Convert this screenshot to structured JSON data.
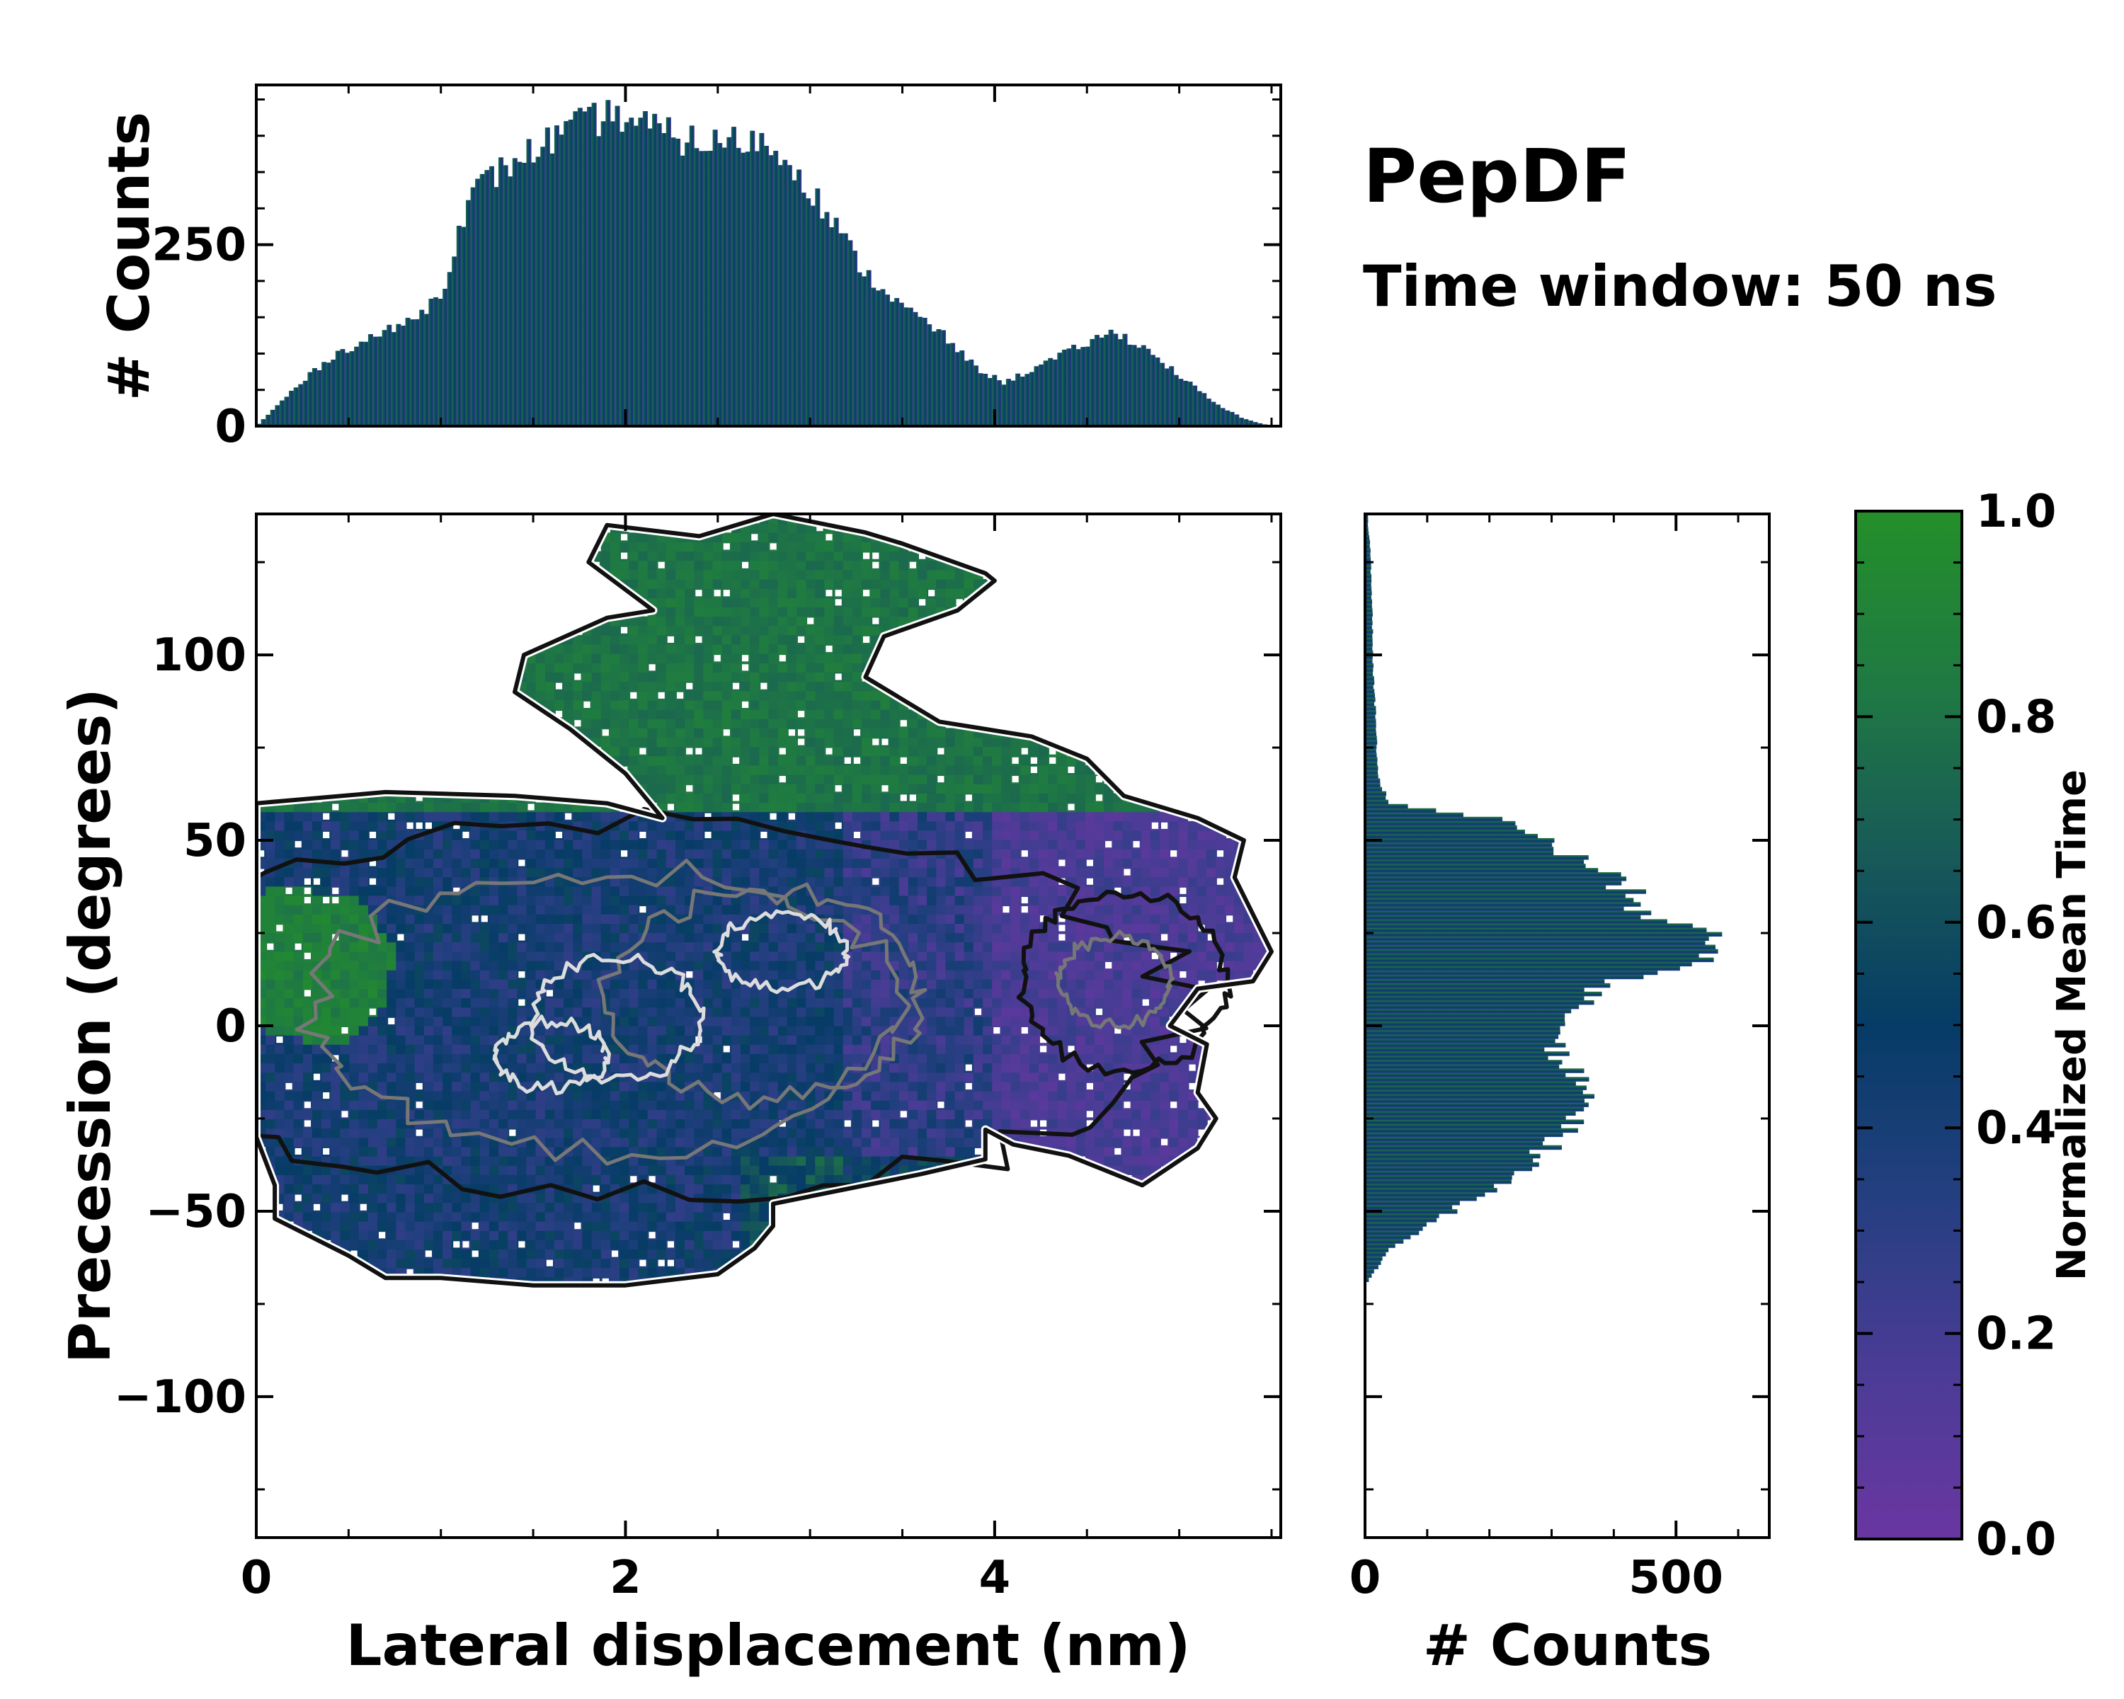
{
  "title": "PepDF",
  "subtitle": "Time window: 50 ns",
  "colors": {
    "cmap": [
      "#6a36a1",
      "#4a3c96",
      "#243f80",
      "#063c66",
      "#185a58",
      "#1f7a42",
      "#248f2a"
    ],
    "contour_outer": "#111111",
    "contour_inner": "#777777",
    "contour_core": "#dddddd",
    "missing": "#ffffff"
  },
  "chart_data": [
    {
      "type": "heatmap",
      "name": "main-2d-histogram",
      "xlabel": "Lateral displacement (nm)",
      "ylabel": "Precession (degrees)",
      "xlim": [
        0,
        5.55
      ],
      "ylim": [
        -138,
        138
      ],
      "xticks": [
        0,
        2,
        4
      ],
      "xtick_labels": [
        "0",
        "2",
        "4"
      ],
      "yticks": [
        -100,
        -50,
        0,
        50,
        100
      ],
      "ytick_labels": [
        "−100",
        "−50",
        "0",
        "50",
        "100"
      ],
      "outline_polygon": [
        [
          0.0,
          60
        ],
        [
          0.7,
          63
        ],
        [
          1.4,
          62
        ],
        [
          1.9,
          60
        ],
        [
          2.2,
          56
        ],
        [
          2.0,
          68
        ],
        [
          1.7,
          80
        ],
        [
          1.4,
          90
        ],
        [
          1.45,
          100
        ],
        [
          1.9,
          110
        ],
        [
          2.15,
          112
        ],
        [
          1.8,
          125
        ],
        [
          1.9,
          135
        ],
        [
          2.4,
          132
        ],
        [
          2.8,
          138
        ],
        [
          3.3,
          133
        ],
        [
          3.5,
          130
        ],
        [
          3.95,
          122
        ],
        [
          4.0,
          120
        ],
        [
          3.8,
          112
        ],
        [
          3.4,
          105
        ],
        [
          3.3,
          94
        ],
        [
          3.7,
          82
        ],
        [
          4.2,
          78
        ],
        [
          4.5,
          72
        ],
        [
          4.7,
          62
        ],
        [
          5.1,
          56
        ],
        [
          5.35,
          50
        ],
        [
          5.3,
          40
        ],
        [
          5.4,
          30
        ],
        [
          5.5,
          20
        ],
        [
          5.4,
          12
        ],
        [
          5.1,
          10
        ],
        [
          4.95,
          0
        ],
        [
          5.15,
          -5
        ],
        [
          5.1,
          -18
        ],
        [
          5.2,
          -25
        ],
        [
          5.1,
          -33
        ],
        [
          4.95,
          -38
        ],
        [
          4.8,
          -43
        ],
        [
          4.4,
          -35
        ],
        [
          4.1,
          -32
        ],
        [
          3.95,
          -28
        ],
        [
          3.95,
          -36
        ],
        [
          3.6,
          -40
        ],
        [
          3.2,
          -44
        ],
        [
          2.8,
          -48
        ],
        [
          2.8,
          -54
        ],
        [
          2.7,
          -60
        ],
        [
          2.5,
          -67
        ],
        [
          2.0,
          -70
        ],
        [
          1.5,
          -70
        ],
        [
          1.0,
          -68
        ],
        [
          0.7,
          -68
        ],
        [
          0.5,
          -62
        ],
        [
          0.3,
          -57
        ],
        [
          0.1,
          -52
        ],
        [
          0.1,
          -43
        ],
        [
          0.0,
          -30
        ]
      ],
      "green_polygon": [
        [
          0.0,
          0
        ],
        [
          0.0,
          35
        ],
        [
          0.15,
          38
        ],
        [
          0.55,
          34
        ],
        [
          0.75,
          22
        ],
        [
          0.7,
          5
        ],
        [
          0.45,
          -5
        ],
        [
          0.15,
          -3
        ]
      ],
      "contours": [
        {
          "level": "outer",
          "cx": 2.1,
          "cy": 4,
          "rx": 2.9,
          "ry": 50,
          "jitter": 5
        },
        {
          "level": "outer",
          "cx": 4.7,
          "cy": 12,
          "rx": 0.55,
          "ry": 24,
          "jitter": 4
        },
        {
          "level": "mid",
          "cx": 1.9,
          "cy": 4,
          "rx": 1.6,
          "ry": 38,
          "jitter": 5
        },
        {
          "level": "mid",
          "cx": 2.75,
          "cy": 8,
          "rx": 0.85,
          "ry": 28,
          "jitter": 4
        },
        {
          "level": "mid",
          "cx": 4.65,
          "cy": 12,
          "rx": 0.3,
          "ry": 12,
          "jitter": 3
        },
        {
          "level": "core",
          "cx": 1.95,
          "cy": 2,
          "rx": 0.45,
          "ry": 16,
          "jitter": 3
        },
        {
          "level": "core",
          "cx": 2.85,
          "cy": 20,
          "rx": 0.35,
          "ry": 10,
          "jitter": 3
        },
        {
          "level": "core",
          "cx": 1.6,
          "cy": -8,
          "rx": 0.3,
          "ry": 9,
          "jitter": 3
        }
      ]
    },
    {
      "type": "bar",
      "name": "top-marginal-histogram",
      "xlabel": "",
      "ylabel": "# Counts",
      "xlim": [
        0,
        5.55
      ],
      "ylim": [
        0,
        470
      ],
      "yticks": [
        0,
        250
      ],
      "ytick_labels": [
        "0",
        "250"
      ],
      "x": [
        0.0,
        0.2,
        0.4,
        0.6,
        0.8,
        1.0,
        1.1,
        1.2,
        1.4,
        1.6,
        1.8,
        1.95,
        2.1,
        2.3,
        2.5,
        2.7,
        2.9,
        3.1,
        3.3,
        3.5,
        3.7,
        3.9,
        4.05,
        4.3,
        4.5,
        4.65,
        4.8,
        5.0,
        5.2,
        5.35,
        5.5
      ],
      "values": [
        0,
        50,
        95,
        120,
        140,
        180,
        275,
        330,
        365,
        395,
        420,
        430,
        415,
        395,
        390,
        395,
        365,
        290,
        210,
        165,
        130,
        80,
        60,
        90,
        115,
        130,
        110,
        70,
        30,
        10,
        0
      ]
    },
    {
      "type": "bar",
      "orientation": "horizontal",
      "name": "right-marginal-histogram",
      "xlabel": "# Counts",
      "ylabel": "",
      "xlim": [
        0,
        650
      ],
      "ylim": [
        -138,
        138
      ],
      "xticks": [
        0,
        500
      ],
      "xtick_labels": [
        "0",
        "500"
      ],
      "y": [
        -138,
        -70,
        -60,
        -50,
        -40,
        -30,
        -20,
        -10,
        0,
        10,
        15,
        20,
        25,
        30,
        40,
        45,
        50,
        55,
        60,
        65,
        70,
        80,
        90,
        100,
        110,
        120,
        130,
        135
      ],
      "values": [
        0,
        0,
        40,
        140,
        250,
        310,
        360,
        320,
        300,
        380,
        470,
        560,
        580,
        460,
        400,
        340,
        300,
        250,
        40,
        25,
        20,
        18,
        15,
        12,
        12,
        10,
        8,
        5
      ]
    },
    {
      "type": "colorbar",
      "name": "colorbar",
      "label": "Normalized Mean Time",
      "range": [
        0.0,
        1.0
      ],
      "ticks": [
        0.0,
        0.2,
        0.4,
        0.6,
        0.8,
        1.0
      ],
      "tick_labels": [
        "0.0",
        "0.2",
        "0.4",
        "0.6",
        "0.8",
        "1.0"
      ]
    }
  ]
}
